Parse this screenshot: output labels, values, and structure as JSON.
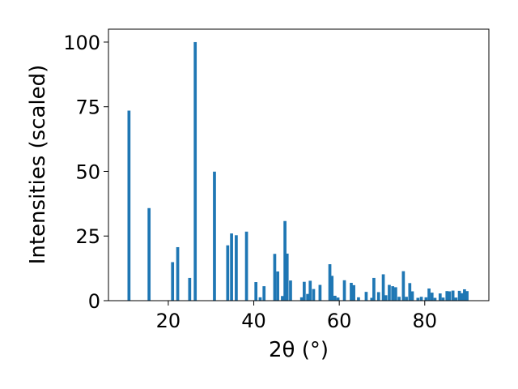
{
  "chart_data": {
    "type": "bar",
    "xlabel": "2θ (°)",
    "ylabel": "Intensities (scaled)",
    "xlim": [
      6,
      95
    ],
    "ylim": [
      0,
      105
    ],
    "xticks": [
      "20",
      "40",
      "60",
      "80"
    ],
    "yticks": [
      "0",
      "25",
      "50",
      "75",
      "100"
    ],
    "grid": false,
    "bar_color": "#1f77b4",
    "x": [
      10.8,
      15.5,
      21.0,
      22.2,
      25.0,
      26.3,
      30.8,
      33.9,
      34.8,
      35.9,
      38.3,
      40.5,
      41.5,
      42.4,
      44.9,
      45.6,
      46.7,
      47.3,
      47.8,
      48.6,
      51.2,
      51.8,
      52.6,
      53.2,
      54.0,
      55.5,
      57.8,
      58.3,
      59.0,
      59.7,
      61.2,
      62.8,
      63.4,
      64.5,
      66.3,
      67.6,
      68.1,
      69.2,
      70.3,
      70.9,
      71.7,
      72.5,
      73.2,
      74.0,
      75.0,
      75.7,
      76.5,
      77.1,
      78.4,
      79.2,
      80.3,
      81.0,
      81.7,
      82.4,
      83.6,
      84.3,
      85.2,
      85.8,
      86.6,
      87.3,
      88.1,
      88.7,
      89.3,
      89.9
    ],
    "values": [
      73.5,
      35.8,
      14.9,
      20.7,
      8.8,
      100.0,
      49.9,
      21.4,
      26.0,
      25.3,
      26.7,
      7.2,
      1.3,
      5.6,
      18.1,
      11.3,
      1.8,
      30.8,
      18.2,
      7.8,
      1.3,
      7.3,
      2.6,
      7.7,
      4.5,
      6.1,
      14.1,
      9.6,
      1.9,
      1.2,
      7.9,
      6.9,
      6.0,
      1.3,
      3.4,
      1.1,
      8.8,
      3.3,
      10.2,
      2.1,
      6.1,
      5.6,
      5.2,
      1.5,
      11.4,
      1.5,
      6.8,
      3.6,
      1.1,
      1.5,
      1.3,
      4.7,
      3.1,
      1.1,
      2.8,
      1.2,
      3.7,
      3.6,
      3.9,
      1.2,
      3.8,
      2.9,
      4.4,
      3.7
    ]
  }
}
